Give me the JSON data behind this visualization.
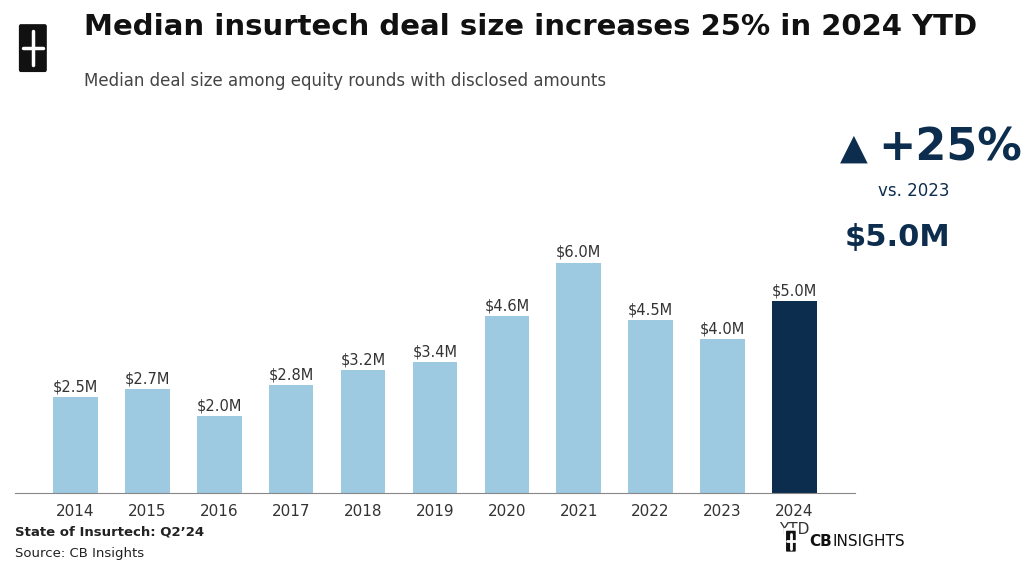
{
  "title": "Median insurtech deal size increases 25% in 2024 YTD",
  "subtitle": "Median deal size among equity rounds with disclosed amounts",
  "categories": [
    "2014",
    "2015",
    "2016",
    "2017",
    "2018",
    "2019",
    "2020",
    "2021",
    "2022",
    "2023",
    "2024\nYTD"
  ],
  "values": [
    2.5,
    2.7,
    2.0,
    2.8,
    3.2,
    3.4,
    4.6,
    6.0,
    4.5,
    4.0,
    5.0
  ],
  "bar_labels": [
    "$2.5M",
    "$2.7M",
    "$2.0M",
    "$2.8M",
    "$3.2M",
    "$3.4M",
    "$4.6M",
    "$6.0M",
    "$4.5M",
    "$4.0M",
    "$5.0M"
  ],
  "bar_color_light": "#9ecae1",
  "bar_color_dark": "#0d2d4e",
  "last_bar_index": 10,
  "annotation_pct": "+25%",
  "annotation_vs": "vs. 2023",
  "annotation_value": "$5.0M",
  "footer_bold": "State of Insurtech: Q2’24",
  "footer_normal": "Source: CB Insights",
  "bg_color": "#ffffff",
  "title_color": "#111111",
  "subtitle_color": "#444444",
  "bar_label_color": "#333333",
  "dark_blue": "#0d2d4e",
  "ylim": [
    0,
    7.5
  ],
  "title_fontsize": 21,
  "subtitle_fontsize": 12,
  "bar_label_fontsize": 10.5,
  "tick_fontsize": 11,
  "footer_fontsize": 9.5,
  "annot_pct_fontsize": 32,
  "annot_vs_fontsize": 12,
  "annot_val_fontsize": 22
}
